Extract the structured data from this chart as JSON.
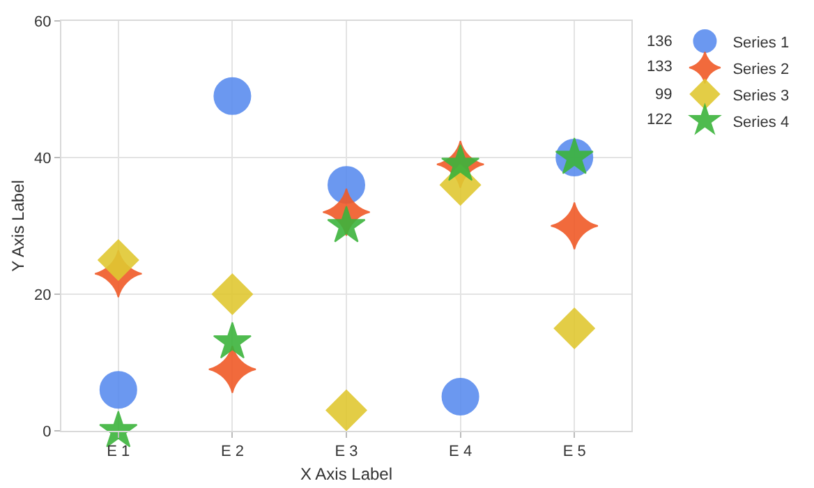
{
  "chart_data": {
    "type": "scatter",
    "xlabel": "X Axis Label",
    "ylabel": "Y Axis Label",
    "categories": [
      "E 1",
      "E 2",
      "E 3",
      "E 4",
      "E 5"
    ],
    "ylim": [
      0,
      60
    ],
    "yticks": [
      0,
      20,
      40,
      60
    ],
    "grid": true,
    "legend": "top right",
    "totals": [
      "136",
      "133",
      "99",
      "122"
    ],
    "series": [
      {
        "name": "Series 1",
        "color": "#5b8def",
        "marker": "circle",
        "values": [
          6,
          49,
          36,
          5,
          40
        ]
      },
      {
        "name": "Series 2",
        "color": "#f05a28",
        "marker": "cross",
        "values": [
          23,
          9,
          32,
          39,
          30
        ]
      },
      {
        "name": "Series 3",
        "color": "#e0c832",
        "marker": "diamond",
        "values": [
          25,
          20,
          3,
          36,
          15
        ]
      },
      {
        "name": "Series 4",
        "color": "#3cb43c",
        "marker": "star",
        "values": [
          0,
          13,
          30,
          39,
          40
        ]
      }
    ]
  }
}
